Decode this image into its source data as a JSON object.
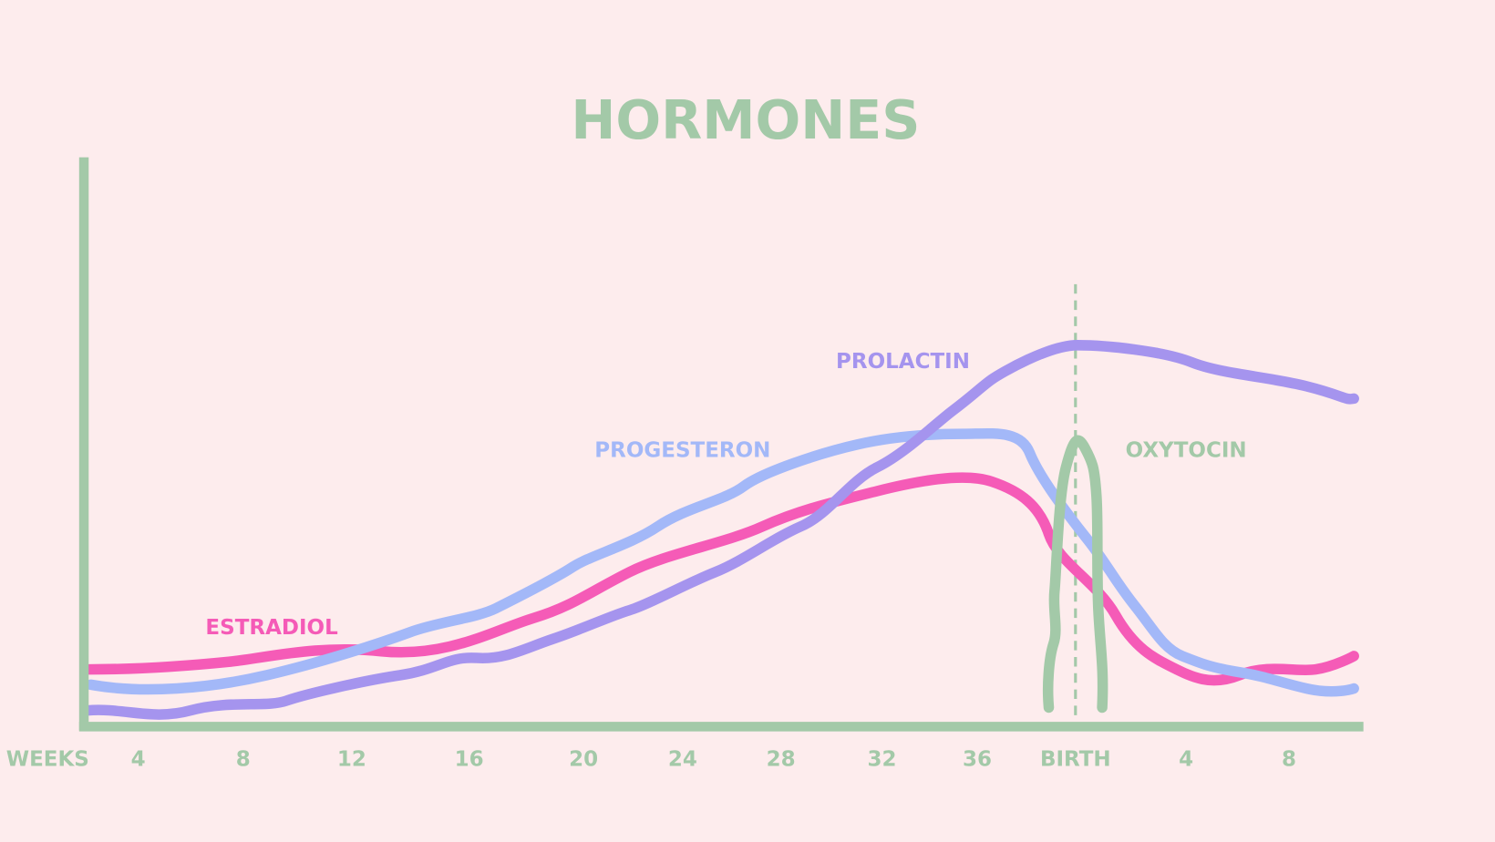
{
  "title": "HORMONES",
  "x_axis": {
    "labels": [
      "WEEKS",
      "4",
      "8",
      "12",
      "16",
      "20",
      "24",
      "28",
      "32",
      "36",
      "BIRTH",
      "4",
      "8"
    ]
  },
  "curves": [
    {
      "label": "ESTRADIOL",
      "color": "#f55bb7"
    },
    {
      "label": "PROGESTERON",
      "color": "#a3b8f8"
    },
    {
      "label": "PROLACTIN",
      "color": "#a594ee"
    },
    {
      "label": "OXYTOCIN",
      "color": "#a3c9a8"
    }
  ]
}
